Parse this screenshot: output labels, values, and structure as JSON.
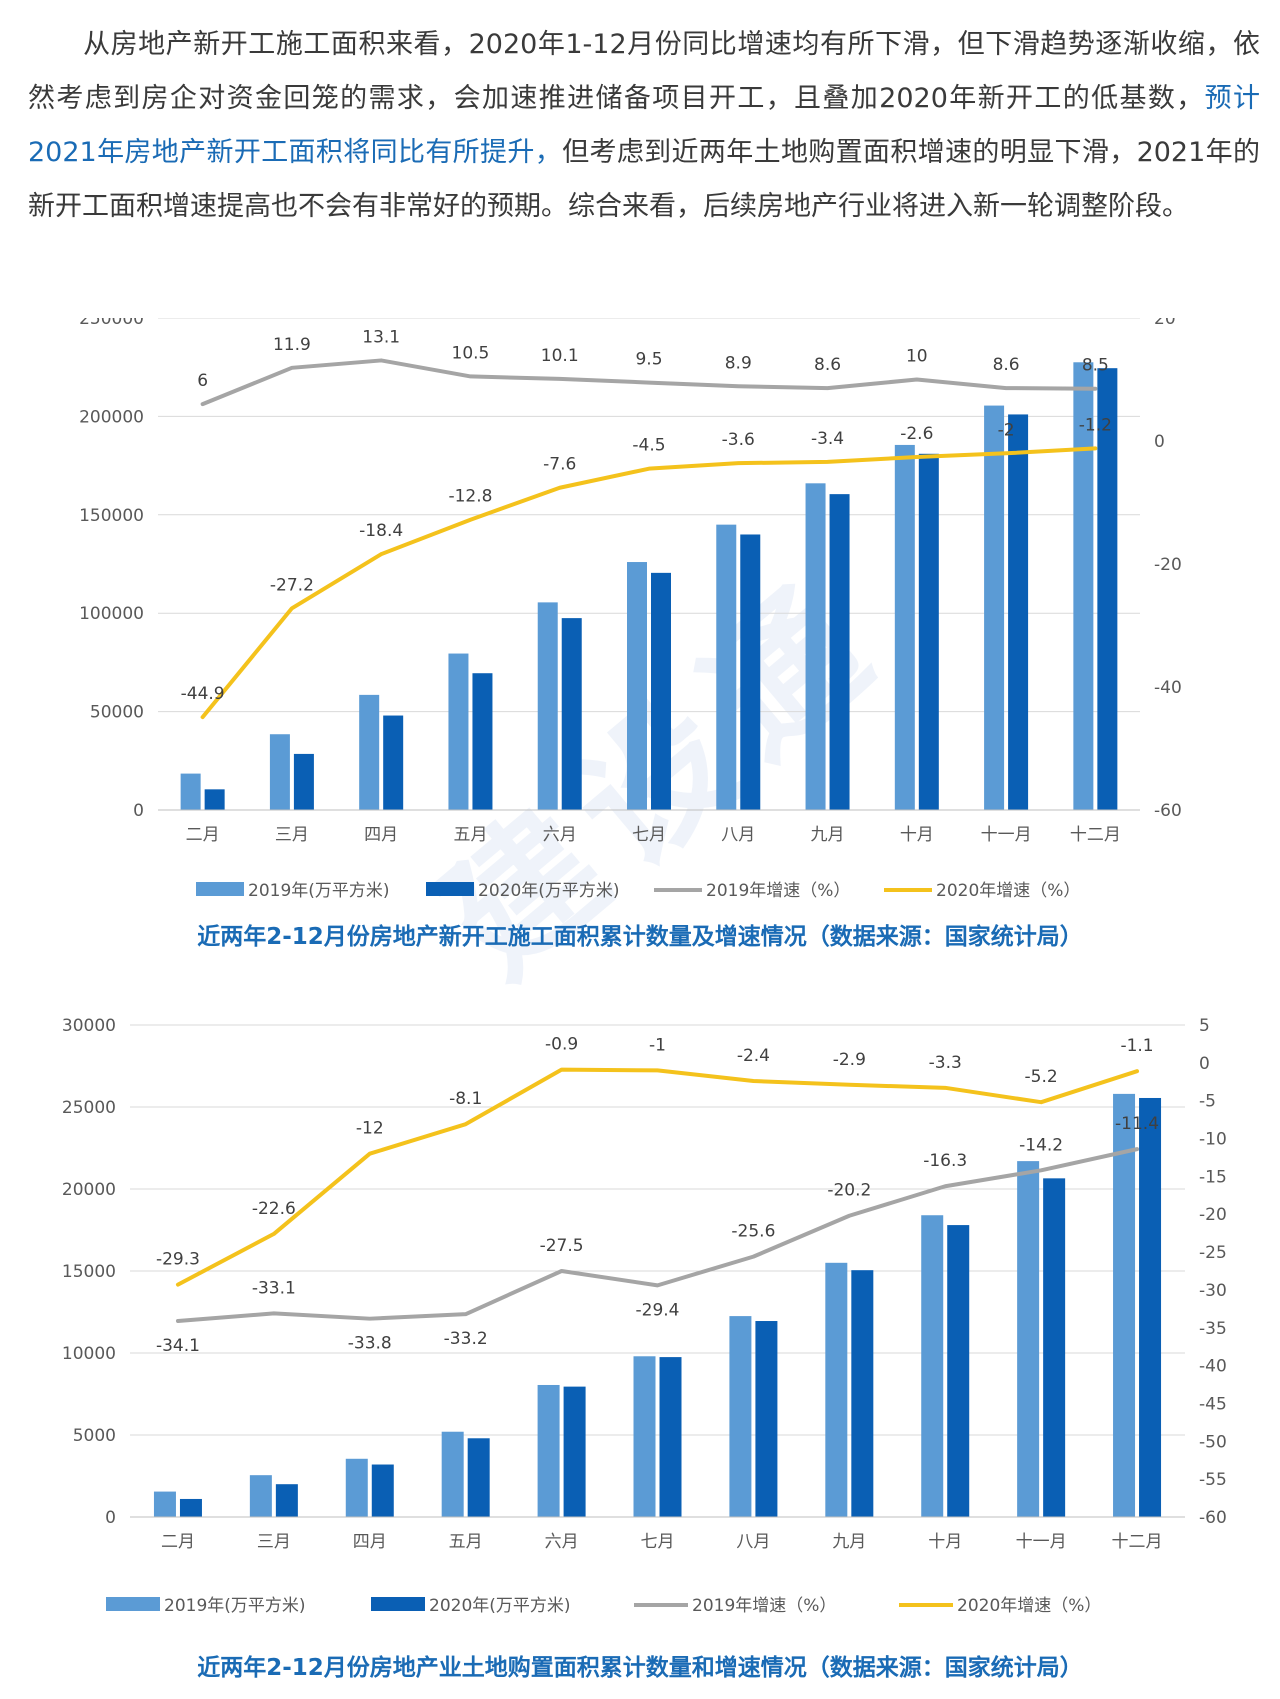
{
  "paragraph": {
    "part1": "　　从房地产新开工施工面积来看，2020年1-12月份同比增速均有所下滑，但下滑趋势逐渐收缩，依然考虑到房企对资金回笼的需求，会加速推进储备项目开工，且叠加2020年新开工的低基数，",
    "highlight": "预计2021年房地产新开工面积将同比有所提升，",
    "part2": "但考虑到近两年土地购置面积增速的明显下滑，2021年的新开工面积增速提高也不会有非常好的预期。综合来看，后续房地产行业将进入新一轮调整阶段。"
  },
  "watermark": "建设通",
  "colors": {
    "bar2019": "#5b9bd5",
    "bar2020": "#0a5fb4",
    "line2019": "#a5a5a5",
    "line2020": "#f4c21c",
    "caption": "#1a6bb5",
    "highlight": "#1a6bb5"
  },
  "chart_data": [
    {
      "type": "bar",
      "caption": "近两年2-12月份房地产新开工施工面积累计数量及增速情况（数据来源：国家统计局）",
      "categories": [
        "二月",
        "三月",
        "四月",
        "五月",
        "六月",
        "七月",
        "八月",
        "九月",
        "十月",
        "十一月",
        "十二月"
      ],
      "series": [
        {
          "name": "2019年(万平方米)",
          "kind": "bar",
          "axis": "left",
          "values": [
            18500,
            38500,
            58500,
            79500,
            105500,
            126000,
            145000,
            166000,
            185500,
            205500,
            227500
          ]
        },
        {
          "name": "2020年(万平方米)",
          "kind": "bar",
          "axis": "left",
          "values": [
            10500,
            28500,
            48000,
            69500,
            97500,
            120500,
            140000,
            160500,
            181000,
            201000,
            224500
          ]
        },
        {
          "name": "2019年增速（%）",
          "kind": "line",
          "axis": "right",
          "values": [
            6,
            11.9,
            13.1,
            10.5,
            10.1,
            9.5,
            8.9,
            8.6,
            10,
            8.6,
            8.5
          ]
        },
        {
          "name": "2020年增速（%）",
          "kind": "line",
          "axis": "right",
          "values": [
            -44.9,
            -27.2,
            -18.4,
            -12.8,
            -7.6,
            -4.5,
            -3.6,
            -3.4,
            -2.6,
            -2,
            -1.2
          ]
        }
      ],
      "yleft": {
        "min": 0,
        "max": 250000,
        "ticks": [
          "0",
          "50000",
          "100000",
          "150000",
          "200000",
          "250000"
        ]
      },
      "yright": {
        "min": -60,
        "max": 20,
        "ticks": [
          "-60",
          "-40",
          "-20",
          "0",
          "20"
        ]
      },
      "legend": "bottom"
    },
    {
      "type": "bar",
      "caption": "近两年2-12月份房地产业土地购置面积累计数量和增速情况（数据来源：国家统计局）",
      "categories": [
        "二月",
        "三月",
        "四月",
        "五月",
        "六月",
        "七月",
        "八月",
        "九月",
        "十月",
        "十一月",
        "十二月"
      ],
      "series": [
        {
          "name": "2019年(万平方米)",
          "kind": "bar",
          "axis": "left",
          "values": [
            1550,
            2550,
            3550,
            5200,
            8050,
            9800,
            12250,
            15500,
            18400,
            21700,
            25800
          ]
        },
        {
          "name": "2020年(万平方米)",
          "kind": "bar",
          "axis": "left",
          "values": [
            1100,
            2000,
            3200,
            4800,
            7950,
            9750,
            11950,
            15050,
            17800,
            20650,
            25550
          ]
        },
        {
          "name": "2019年增速（%）",
          "kind": "line",
          "axis": "right",
          "values": [
            -34.1,
            -33.1,
            -33.8,
            -33.2,
            -27.5,
            -29.4,
            -25.6,
            -20.2,
            -16.3,
            -14.2,
            -11.4
          ]
        },
        {
          "name": "2020年增速（%）",
          "kind": "line",
          "axis": "right",
          "values": [
            -29.3,
            -22.6,
            -12,
            -8.1,
            -0.9,
            -1,
            -2.4,
            -2.9,
            -3.3,
            -5.2,
            -1.1
          ]
        }
      ],
      "yleft": {
        "min": 0,
        "max": 30000,
        "ticks": [
          "0",
          "5000",
          "10000",
          "15000",
          "20000",
          "25000",
          "30000"
        ]
      },
      "yright": {
        "min": -60,
        "max": 5,
        "ticks": [
          "-60",
          "-55",
          "-50",
          "-45",
          "-40",
          "-35",
          "-30",
          "-25",
          "-20",
          "-15",
          "-10",
          "-5",
          "0",
          "5"
        ]
      },
      "legend": "bottom"
    }
  ]
}
